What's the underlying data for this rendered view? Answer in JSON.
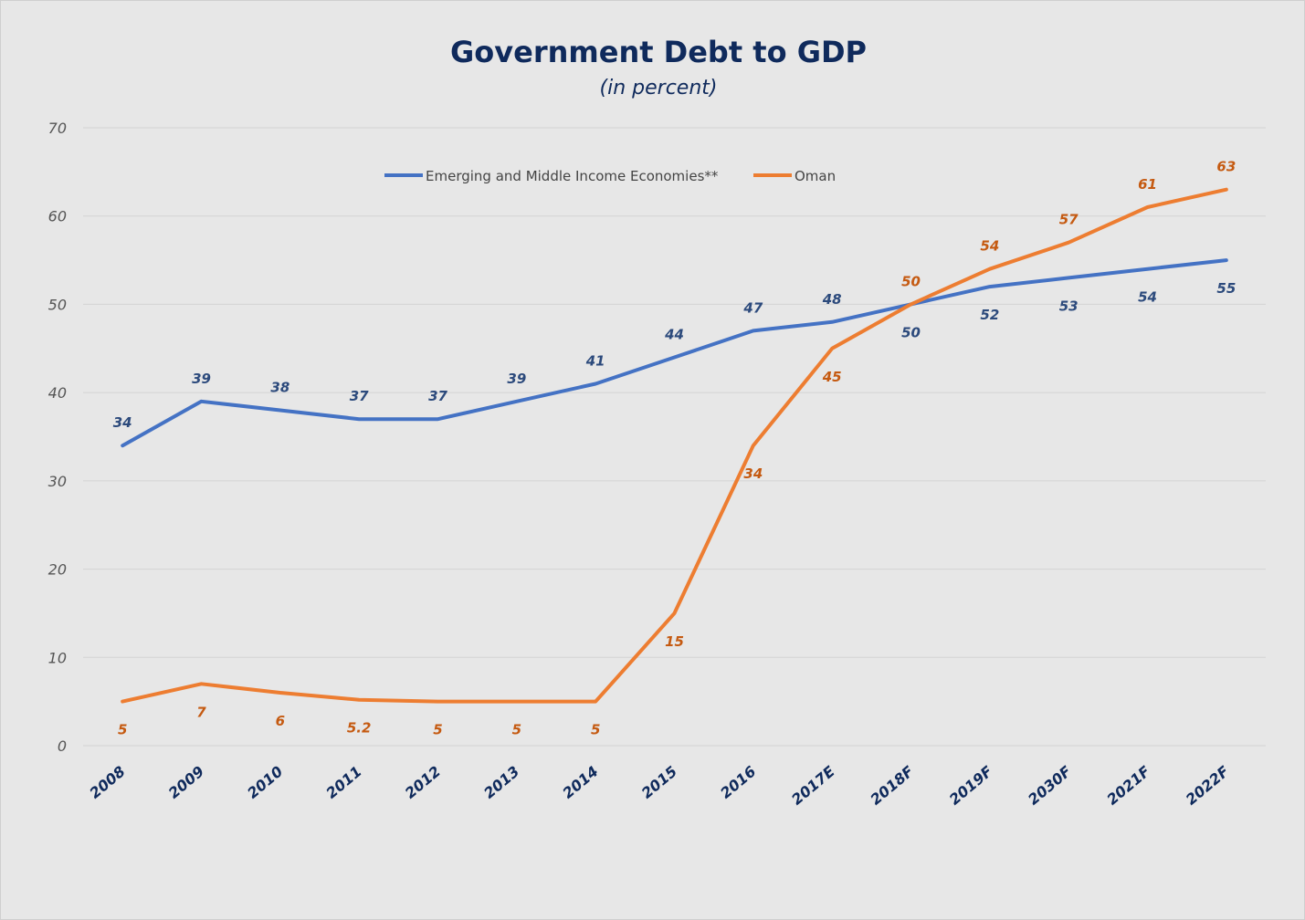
{
  "chart_data": {
    "type": "line",
    "title": "Government Debt to GDP",
    "subtitle": "(in percent)",
    "xlabel": "",
    "ylabel": "",
    "ylim": [
      0,
      70
    ],
    "yticks": [
      0,
      10,
      20,
      30,
      40,
      50,
      60,
      70
    ],
    "grid": true,
    "legend_position": "top-center",
    "categories": [
      "2008",
      "2009",
      "2010",
      "2011",
      "2012",
      "2013",
      "2014",
      "2015",
      "2016",
      "2017E",
      "2018F",
      "2019F",
      "2030F",
      "2021F",
      "2022F"
    ],
    "series": [
      {
        "name": "Emerging and Middle Income Economies**",
        "color": "#4472c4",
        "label_color": "#2c4a7c",
        "values": [
          34,
          39,
          38,
          37,
          37,
          39,
          41,
          44,
          47,
          48,
          50,
          52,
          53,
          54,
          55
        ],
        "labels": [
          "34",
          "39",
          "38",
          "37",
          "37",
          "39",
          "41",
          "44",
          "47",
          "48",
          "50",
          "52",
          "53",
          "54",
          "55"
        ]
      },
      {
        "name": "Oman",
        "color": "#ed7d31",
        "label_color": "#c55a11",
        "values": [
          5,
          7,
          6,
          5.2,
          5,
          5,
          5,
          15,
          34,
          45,
          50,
          54,
          57,
          61,
          63
        ],
        "labels": [
          "5",
          "7",
          "6",
          "5.2",
          "5",
          "5",
          "5",
          "15",
          "34",
          "45",
          "50",
          "54",
          "57",
          "61",
          "63"
        ]
      }
    ]
  }
}
